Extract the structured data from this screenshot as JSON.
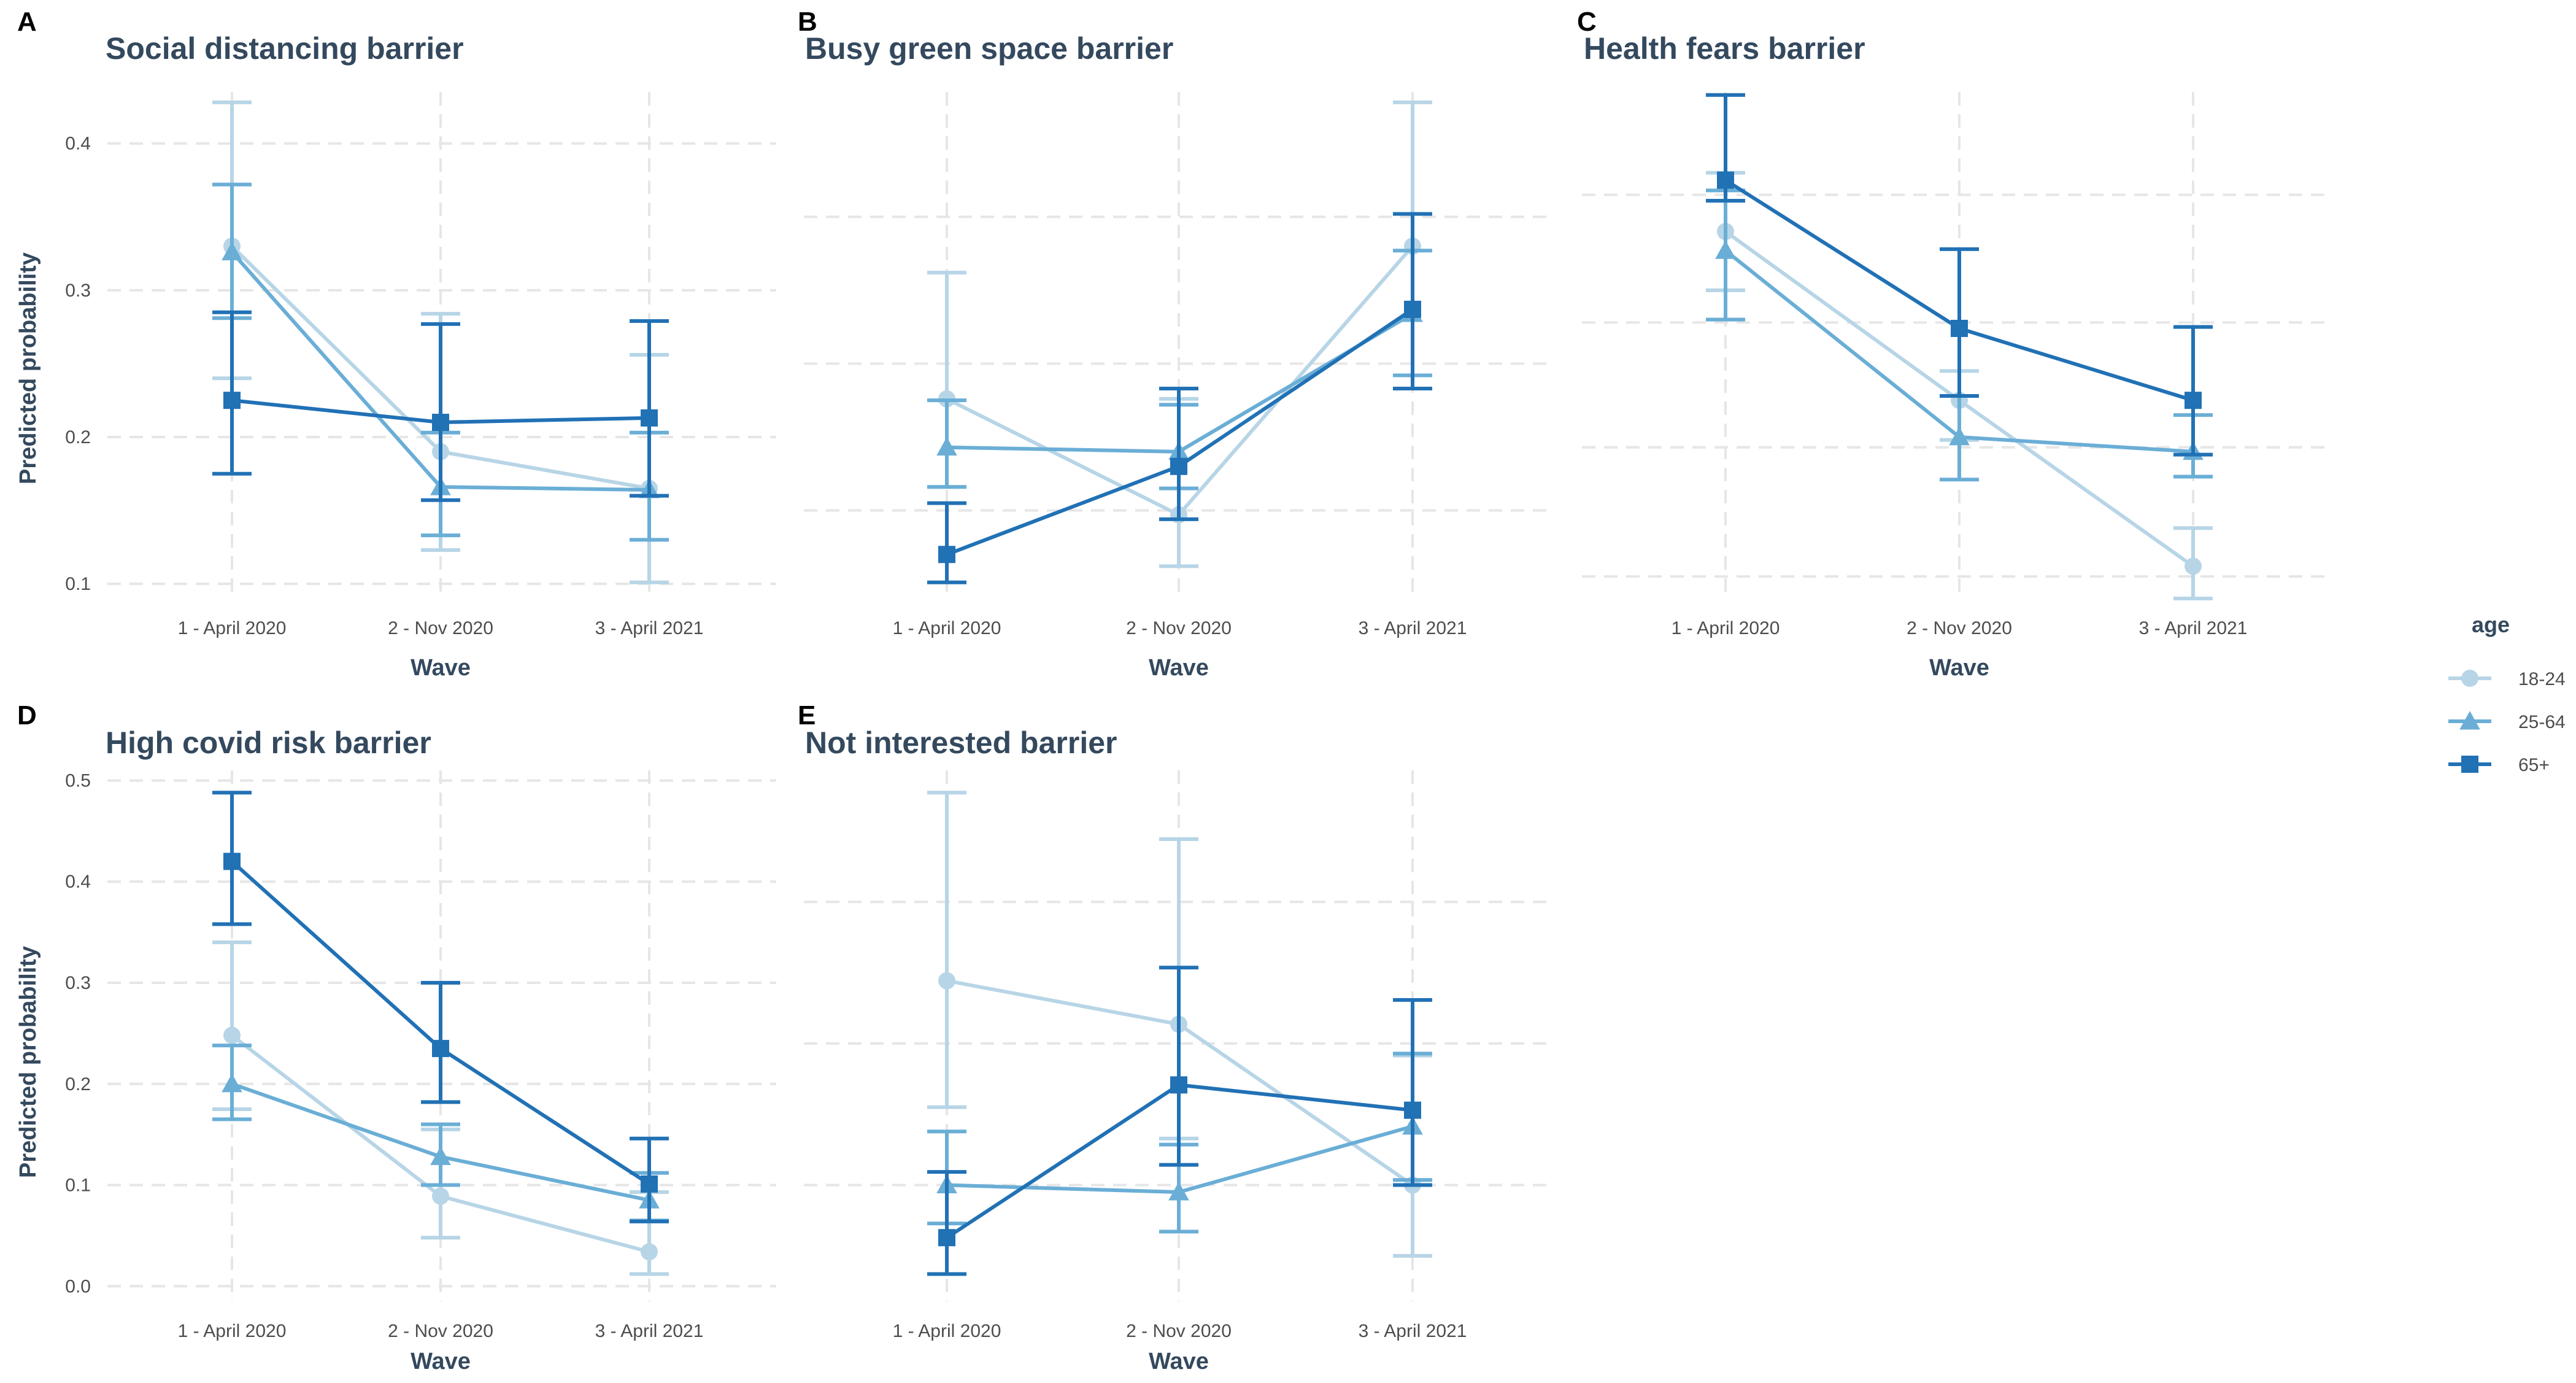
{
  "figure": {
    "legend": {
      "title": "age",
      "placement": "right",
      "entries": [
        {
          "label": "18-24",
          "shape": "circle",
          "color": "#b7d5e6"
        },
        {
          "label": "25-64",
          "shape": "triangle",
          "color": "#6aaed6"
        },
        {
          "label": "65+",
          "shape": "square",
          "color": "#2171b5"
        }
      ]
    },
    "y_axis_label": "Predicted probability",
    "x_axis_label": "Wave"
  },
  "chart_data": [
    {
      "panel": "A",
      "type": "line",
      "title": "Social distancing barrier",
      "xlabel": "Wave",
      "ylabel": "Predicted probability",
      "categories": [
        "1 - April 2020",
        "2 - Nov 2020",
        "3 - April 2021"
      ],
      "ylim": [
        0.09,
        0.435
      ],
      "yticks": [
        0.1,
        0.2,
        0.3,
        0.4
      ],
      "y_tick_labels": [
        "0.1",
        "0.2",
        "0.3",
        "0.4"
      ],
      "show_y_tick_labels": true,
      "series": [
        {
          "name": "18-24",
          "values": [
            0.33,
            0.19,
            0.165
          ],
          "lower": [
            0.24,
            0.123,
            0.101
          ],
          "upper": [
            0.428,
            0.284,
            0.256
          ]
        },
        {
          "name": "25-64",
          "values": [
            0.326,
            0.166,
            0.164
          ],
          "lower": [
            0.281,
            0.133,
            0.13
          ],
          "upper": [
            0.372,
            0.203,
            0.203
          ]
        },
        {
          "name": "65+",
          "values": [
            0.225,
            0.21,
            0.213
          ],
          "lower": [
            0.175,
            0.157,
            0.16
          ],
          "upper": [
            0.285,
            0.277,
            0.279
          ]
        }
      ]
    },
    {
      "panel": "B",
      "type": "line",
      "title": "Busy green space barrier",
      "xlabel": "Wave",
      "ylabel": "",
      "categories": [
        "1 - April 2020",
        "2 - Nov 2020",
        "3 - April 2021"
      ],
      "ylim": [
        0.09,
        0.435
      ],
      "yticks": [
        0.15,
        0.25,
        0.35
      ],
      "y_tick_labels": [
        "",
        "",
        ""
      ],
      "show_y_tick_labels": false,
      "series": [
        {
          "name": "18-24",
          "values": [
            0.226,
            0.147,
            0.33
          ],
          "lower": [
            0.166,
            0.112,
            0.233
          ],
          "upper": [
            0.312,
            0.226,
            0.428
          ]
        },
        {
          "name": "25-64",
          "values": [
            0.193,
            0.19,
            0.284
          ],
          "lower": [
            0.166,
            0.165,
            0.242
          ],
          "upper": [
            0.225,
            0.222,
            0.327
          ]
        },
        {
          "name": "65+",
          "values": [
            0.12,
            0.18,
            0.287
          ],
          "lower": [
            0.101,
            0.144,
            0.233
          ],
          "upper": [
            0.155,
            0.233,
            0.352
          ]
        }
      ]
    },
    {
      "panel": "C",
      "type": "line",
      "title": "Health fears barrier",
      "xlabel": "Wave",
      "ylabel": "",
      "categories": [
        "1 - April 2020",
        "2 - Nov 2020",
        "3 - April 2021"
      ],
      "ylim": [
        0.09,
        0.435
      ],
      "yticks": [
        0.105,
        0.193,
        0.278,
        0.365
      ],
      "y_tick_labels": [
        "",
        "",
        "",
        ""
      ],
      "show_y_tick_labels": false,
      "series": [
        {
          "name": "18-24",
          "values": [
            0.34,
            0.225,
            0.112
          ],
          "lower": [
            0.3,
            0.198,
            0.09
          ],
          "upper": [
            0.38,
            0.245,
            0.138
          ]
        },
        {
          "name": "25-64",
          "values": [
            0.327,
            0.2,
            0.19
          ],
          "lower": [
            0.28,
            0.171,
            0.173
          ],
          "upper": [
            0.368,
            0.228,
            0.215
          ]
        },
        {
          "name": "65+",
          "values": [
            0.375,
            0.274,
            0.225
          ],
          "lower": [
            0.361,
            0.228,
            0.188
          ],
          "upper": [
            0.433,
            0.328,
            0.275
          ]
        }
      ]
    },
    {
      "panel": "D",
      "type": "line",
      "title": "High covid risk barrier",
      "xlabel": "Wave",
      "ylabel": "Predicted probability",
      "categories": [
        "1 - April 2020",
        "2 - Nov 2020",
        "3 - April 2021"
      ],
      "ylim": [
        -0.015,
        0.51
      ],
      "yticks": [
        0.0,
        0.1,
        0.2,
        0.3,
        0.4,
        0.5
      ],
      "y_tick_labels": [
        "0.0",
        "0.1",
        "0.2",
        "0.3",
        "0.4",
        "0.5"
      ],
      "show_y_tick_labels": true,
      "series": [
        {
          "name": "18-24",
          "values": [
            0.248,
            0.089,
            0.034
          ],
          "lower": [
            0.175,
            0.048,
            0.012
          ],
          "upper": [
            0.34,
            0.155,
            0.093
          ]
        },
        {
          "name": "25-64",
          "values": [
            0.2,
            0.128,
            0.085
          ],
          "lower": [
            0.165,
            0.1,
            0.065
          ],
          "upper": [
            0.238,
            0.16,
            0.112
          ]
        },
        {
          "name": "65+",
          "values": [
            0.42,
            0.235,
            0.101
          ],
          "lower": [
            0.358,
            0.182,
            0.064
          ],
          "upper": [
            0.488,
            0.3,
            0.146
          ]
        }
      ]
    },
    {
      "panel": "E",
      "type": "line",
      "title": "Not interested barrier",
      "xlabel": "Wave",
      "ylabel": "",
      "categories": [
        "1 - April 2020",
        "2 - Nov 2020",
        "3 - April 2021"
      ],
      "ylim": [
        -0.015,
        0.51
      ],
      "yticks": [
        0.1,
        0.24,
        0.38
      ],
      "y_tick_labels": [
        "",
        "",
        ""
      ],
      "show_y_tick_labels": false,
      "series": [
        {
          "name": "18-24",
          "values": [
            0.302,
            0.259,
            0.1
          ],
          "lower": [
            0.177,
            0.146,
            0.03
          ],
          "upper": [
            0.488,
            0.442,
            0.228
          ]
        },
        {
          "name": "25-64",
          "values": [
            0.1,
            0.093,
            0.158
          ],
          "lower": [
            0.062,
            0.054,
            0.105
          ],
          "upper": [
            0.153,
            0.14,
            0.23
          ]
        },
        {
          "name": "65+",
          "values": [
            0.048,
            0.199,
            0.174
          ],
          "lower": [
            0.012,
            0.12,
            0.1
          ],
          "upper": [
            0.113,
            0.315,
            0.283
          ]
        }
      ]
    }
  ]
}
